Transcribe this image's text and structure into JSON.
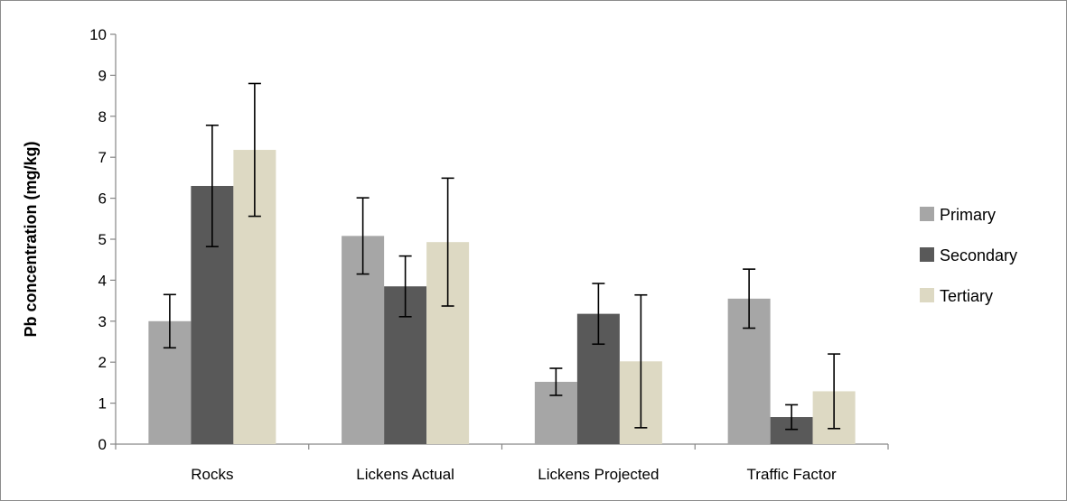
{
  "chart_data": {
    "type": "bar",
    "title": "",
    "xlabel": "",
    "ylabel": "Pb concentration (mg/kg)",
    "ylim": [
      0,
      10
    ],
    "yticks": [
      0,
      1,
      2,
      3,
      4,
      5,
      6,
      7,
      8,
      9,
      10
    ],
    "grid": false,
    "legend_position": "right",
    "categories": [
      "Rocks",
      "Lickens Actual",
      "Lickens Projected",
      "Traffic Factor"
    ],
    "series": [
      {
        "name": "Primary",
        "color": "#a6a6a6",
        "values": [
          3.0,
          5.08,
          1.52,
          3.55
        ],
        "error": [
          0.65,
          0.93,
          0.33,
          0.72
        ]
      },
      {
        "name": "Secondary",
        "color": "#595959",
        "values": [
          6.3,
          3.85,
          3.18,
          0.66
        ],
        "error": [
          1.48,
          0.74,
          0.74,
          0.3
        ]
      },
      {
        "name": "Tertiary",
        "color": "#ddd9c3",
        "values": [
          7.18,
          4.93,
          2.02,
          1.29
        ],
        "error": [
          1.62,
          1.56,
          1.62,
          0.91
        ]
      }
    ]
  }
}
